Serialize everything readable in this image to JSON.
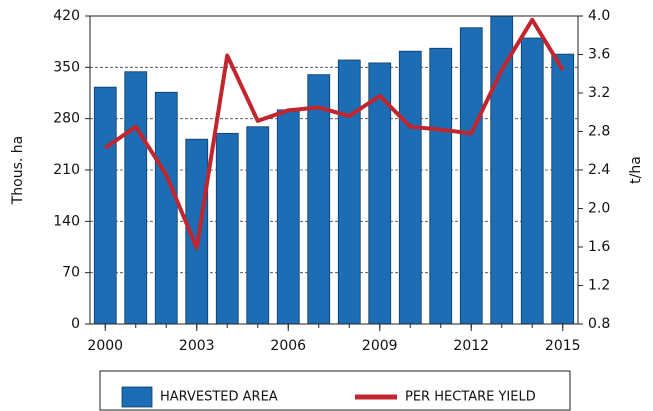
{
  "chart_data": {
    "type": "bar_line",
    "y_label": "Thous. ha",
    "y2_label": "t/ha",
    "x": [
      2000,
      2001,
      2002,
      2003,
      2004,
      2005,
      2006,
      2007,
      2008,
      2009,
      2010,
      2011,
      2012,
      2013,
      2014,
      2015
    ],
    "xlim": [
      1999.5,
      2015.5
    ],
    "xticks": [
      2000,
      2003,
      2006,
      2009,
      2012,
      2015
    ],
    "ylim": [
      0,
      420
    ],
    "yticks": [
      0,
      70,
      140,
      210,
      280,
      350,
      420
    ],
    "y2lim": [
      0.8,
      4.0
    ],
    "y2ticks": [
      0.8,
      1.2,
      1.6,
      {
        "value": 2,
        "label": "2.0"
      },
      2.4,
      2.8,
      3.2,
      3.6,
      {
        "value": 4,
        "label": "4.0"
      }
    ],
    "grid": true,
    "legend": "bottom",
    "series": [
      {
        "name": "HARVESTED AREA",
        "type": "bar",
        "color": "#1c6db3",
        "values": [
          323,
          344,
          316,
          252,
          260,
          269,
          292,
          340,
          360,
          356,
          372,
          376,
          404,
          420,
          390,
          368
        ]
      },
      {
        "name": "PER HECTARE YIELD",
        "type": "line",
        "axis": "y2",
        "color": "#c1262e",
        "values": [
          2.63,
          2.85,
          2.35,
          1.59,
          3.59,
          2.91,
          3.02,
          3.05,
          2.96,
          3.17,
          2.85,
          2.82,
          2.78,
          3.44,
          3.96,
          3.44
        ]
      }
    ]
  }
}
